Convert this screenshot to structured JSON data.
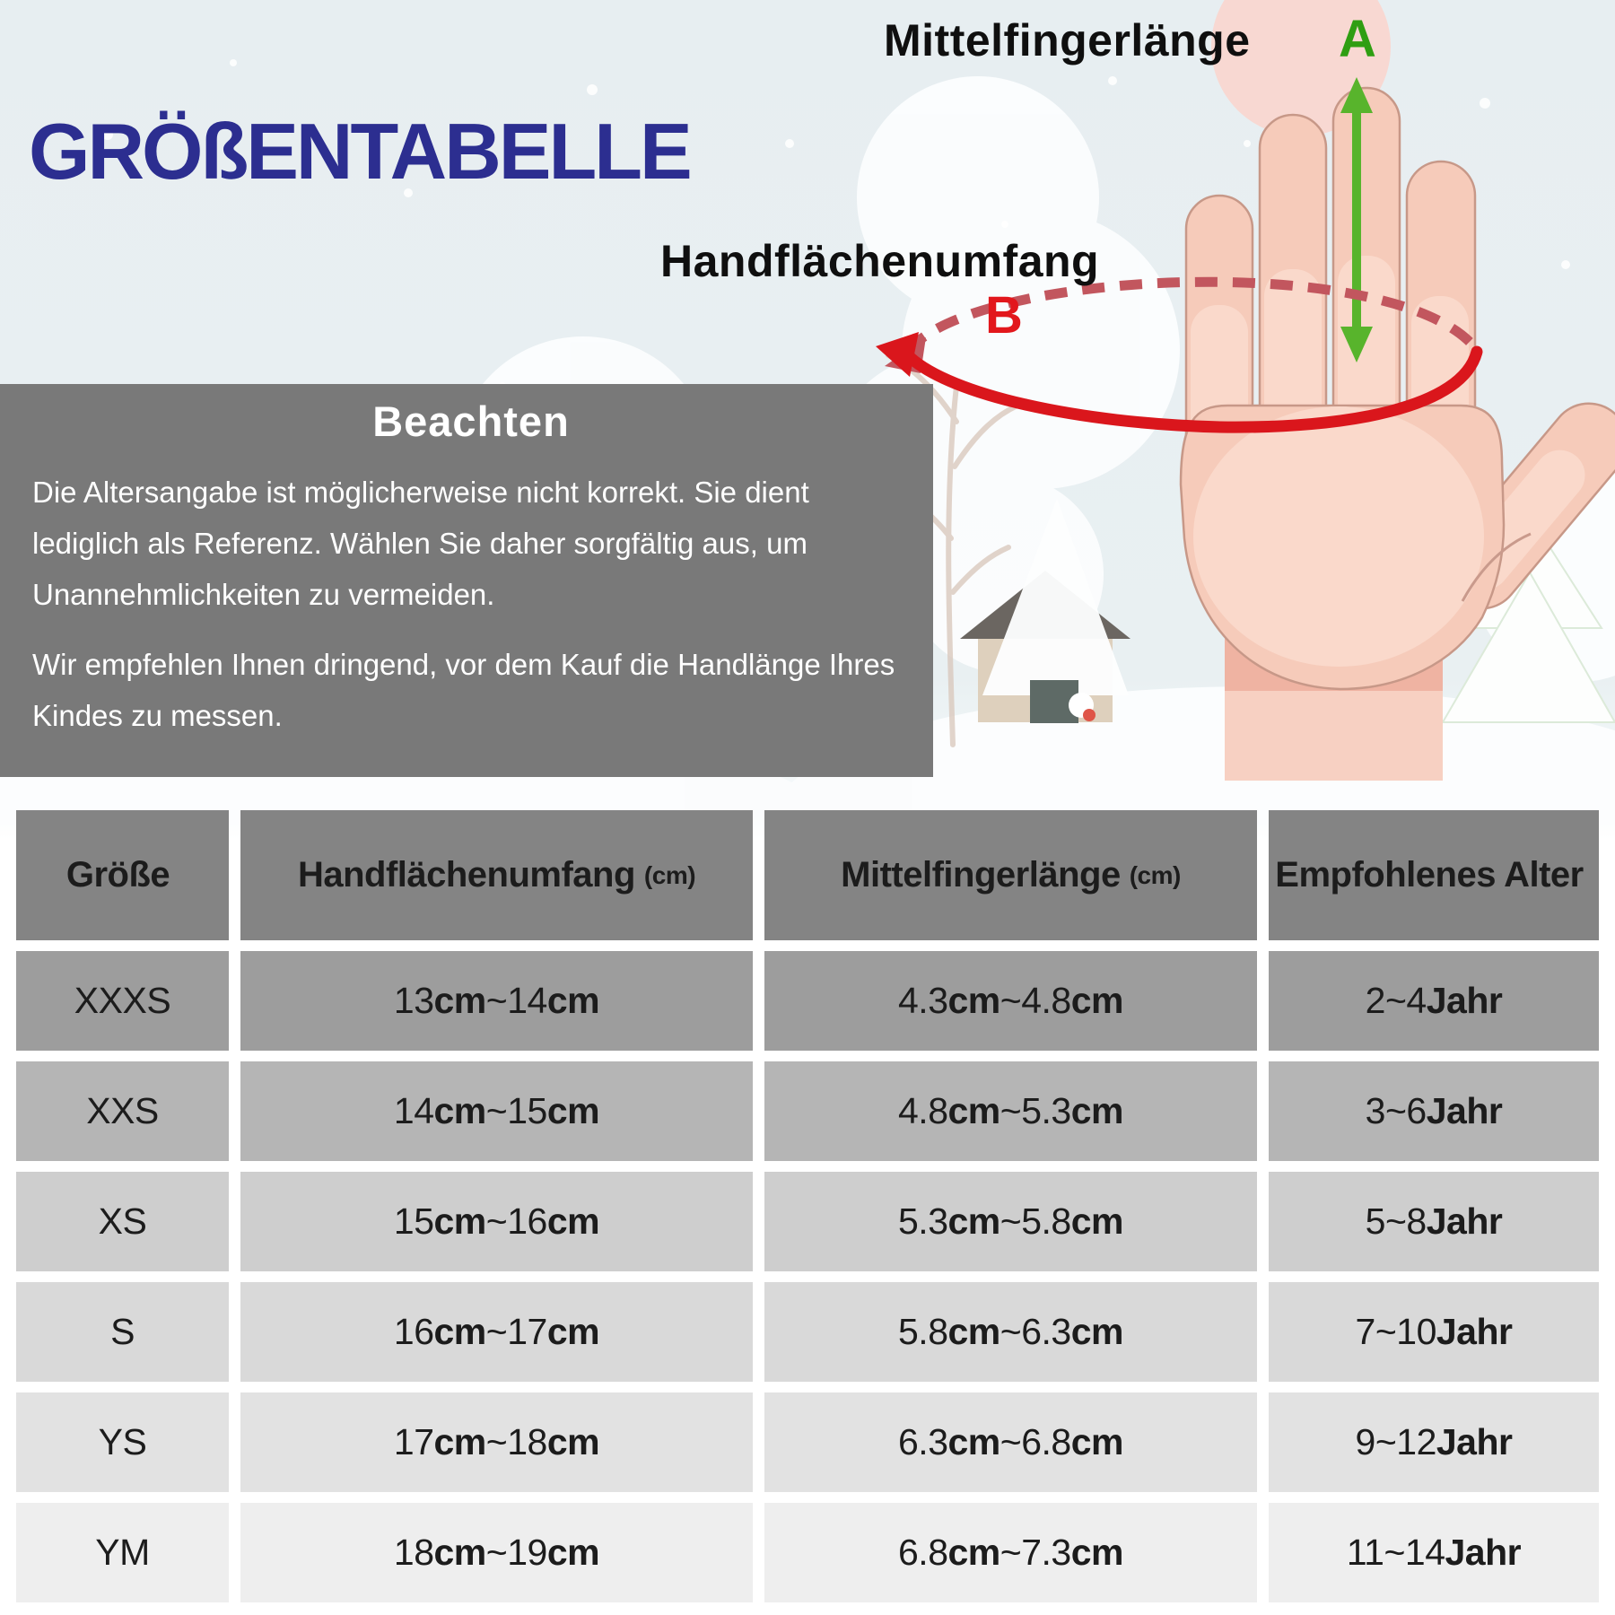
{
  "header": {
    "title": "GRÖßENTABELLE"
  },
  "diagram": {
    "finger_label": "Mittelfingerlänge",
    "finger_marker": "A",
    "palm_label": "Handflächenumfang",
    "palm_marker": "B"
  },
  "note": {
    "heading": "Beachten",
    "paragraph1": "Die Altersangabe ist möglicherweise nicht korrekt. Sie dient lediglich als Referenz. Wählen Sie daher sorgfältig aus, um Unannehmlichkeiten zu vermeiden.",
    "paragraph2": "Wir empfehlen Ihnen dringend, vor dem Kauf die Handlänge Ihres Kindes zu messen."
  },
  "table": {
    "headers": [
      {
        "label": "Größe",
        "unit": ""
      },
      {
        "label": "Handflächenumfang",
        "unit": "(cm)"
      },
      {
        "label": "Mittelfingerlänge",
        "unit": "(cm)"
      },
      {
        "label": "Empfohlenes Alter",
        "unit": ""
      }
    ],
    "rows": [
      {
        "size": "XXXS",
        "palm": "13cm~14cm",
        "finger": "4.3cm~4.8cm",
        "age": "2~4Jahr"
      },
      {
        "size": "XXS",
        "palm": "14cm~15cm",
        "finger": "4.8cm~5.3cm",
        "age": "3~6Jahr"
      },
      {
        "size": "XS",
        "palm": "15cm~16cm",
        "finger": "5.3cm~5.8cm",
        "age": "5~8Jahr"
      },
      {
        "size": "S",
        "palm": "16cm~17cm",
        "finger": "5.8cm~6.3cm",
        "age": "7~10Jahr"
      },
      {
        "size": "YS",
        "palm": "17cm~18cm",
        "finger": "6.3cm~6.8cm",
        "age": "9~12Jahr"
      },
      {
        "size": "YM",
        "palm": "18cm~19cm",
        "finger": "6.8cm~7.3cm",
        "age": "11~14Jahr"
      }
    ]
  },
  "colors": {
    "title_navy": "#2c2e90",
    "note_box_gray": "#797979",
    "marker_a_green": "#2f9e12",
    "arrow_green": "#58b42c",
    "marker_b_red": "#e2171c",
    "arc_solid_red": "#da161c",
    "arc_dashed_rose": "#c2565e",
    "hand_skin": "#f6cbba",
    "hand_skin_light": "#fad9cb",
    "table_header_bg": "#848484",
    "row_shades": [
      "#9d9d9d",
      "#b5b5b5",
      "#cecece",
      "#d9d9d9",
      "#e2e2e2",
      "#eeeeee"
    ]
  }
}
